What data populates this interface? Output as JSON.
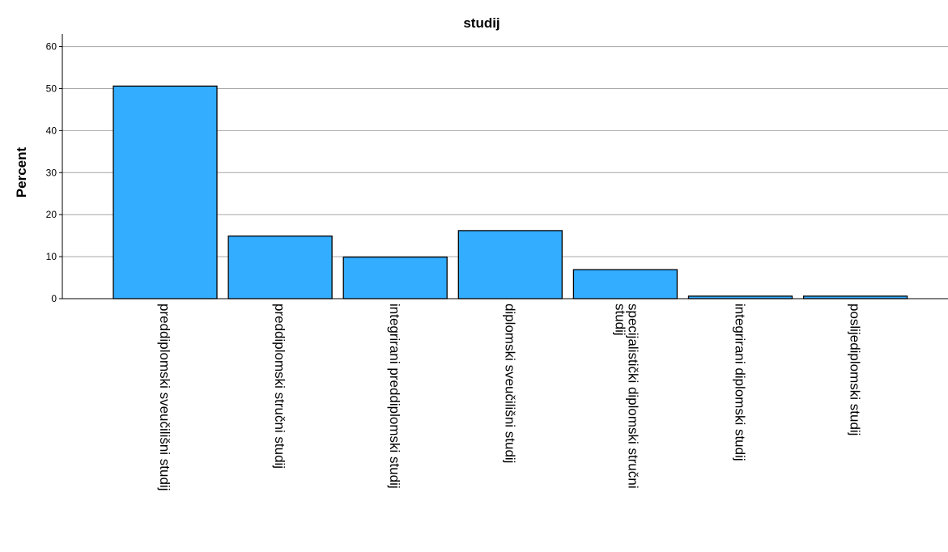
{
  "chart_data": {
    "type": "bar",
    "title": "studij",
    "xlabel": "",
    "ylabel": "Percent",
    "ylim": [
      0,
      63
    ],
    "yticks": [
      0,
      10,
      20,
      30,
      40,
      50,
      60
    ],
    "grid": true,
    "categories": [
      [
        "preddiplomski sveučilišni studij"
      ],
      [
        "preddiplomski stručni studij"
      ],
      [
        "integrirani preddiplomski studij"
      ],
      [
        "diplomski sveučilišni studij"
      ],
      [
        "specijalistički diplomski stručni",
        "studij"
      ],
      [
        "integrirani diplomski studij"
      ],
      [
        "poslijediplomski studij"
      ]
    ],
    "values": [
      50.6,
      14.9,
      9.9,
      16.2,
      6.9,
      0.6,
      0.6
    ],
    "bar_color": "#33adff",
    "bar_stroke": "#000000",
    "grid_color": "#a6a6a6"
  }
}
